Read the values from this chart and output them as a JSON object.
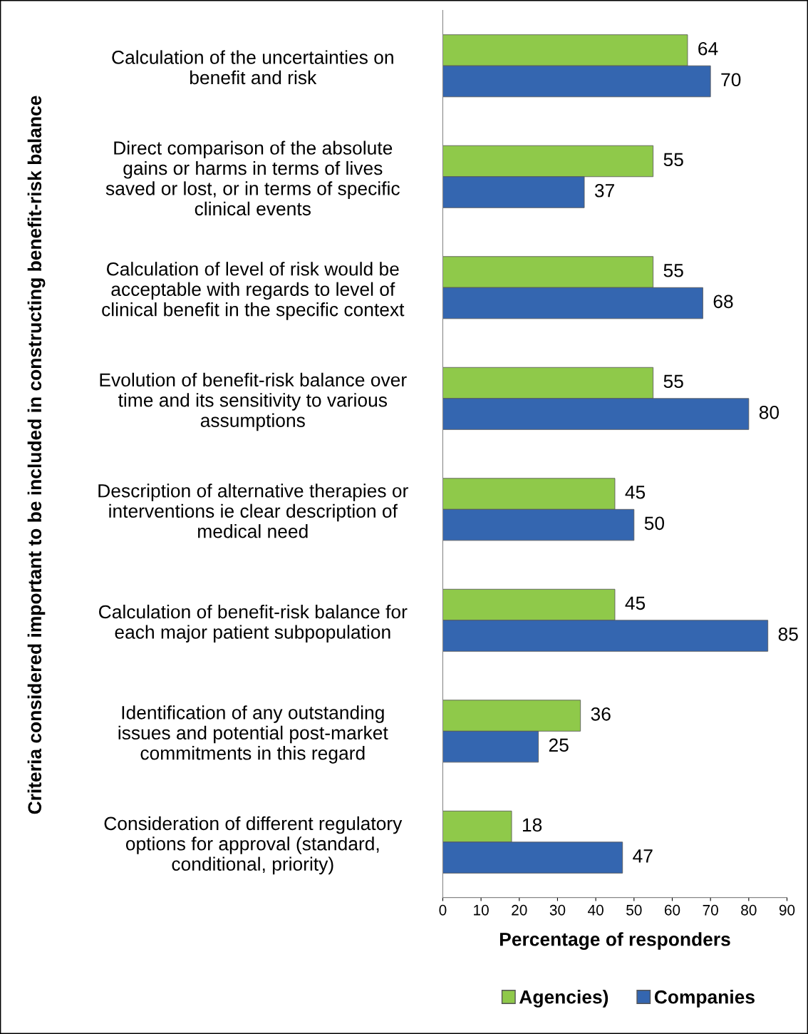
{
  "chart_data": {
    "type": "bar",
    "orientation": "horizontal",
    "ylabel": "Criteria considered important to be included in constructing benefit-risk balance",
    "xlabel": "Percentage of responders",
    "categories": [
      "Calculation of the uncertainties on\nbenefit and risk",
      "Direct comparison of the absolute\ngains or harms in terms of lives\nsaved or lost, or in terms of specific\nclinical events",
      "Calculation of level of risk would be\nacceptable with regards to level of\nclinical benefit in the specific context",
      "Evolution of benefit-risk balance over\ntime and its sensitivity to various\nassumptions",
      "Description of alternative therapies or\ninterventions ie clear description of\nmedical need",
      "Calculation of benefit-risk balance for\neach major patient subpopulation",
      "Identification of any outstanding\nissues and potential post-market\ncommitments in this regard",
      "Consideration of different regulatory\noptions for approval (standard,\nconditional, priority)"
    ],
    "series": [
      {
        "name": "Agencies)",
        "color": "#8fc94a",
        "values": [
          64,
          55,
          55,
          55,
          45,
          45,
          36,
          18
        ]
      },
      {
        "name": "Companies",
        "color": "#3466b0",
        "values": [
          70,
          37,
          68,
          80,
          50,
          85,
          25,
          47
        ]
      }
    ],
    "xlim": [
      0,
      90
    ],
    "xticks": [
      0,
      10,
      20,
      30,
      40,
      50,
      60,
      70,
      80,
      90
    ],
    "data_labels": true,
    "grid": false,
    "legend": "bottom"
  }
}
